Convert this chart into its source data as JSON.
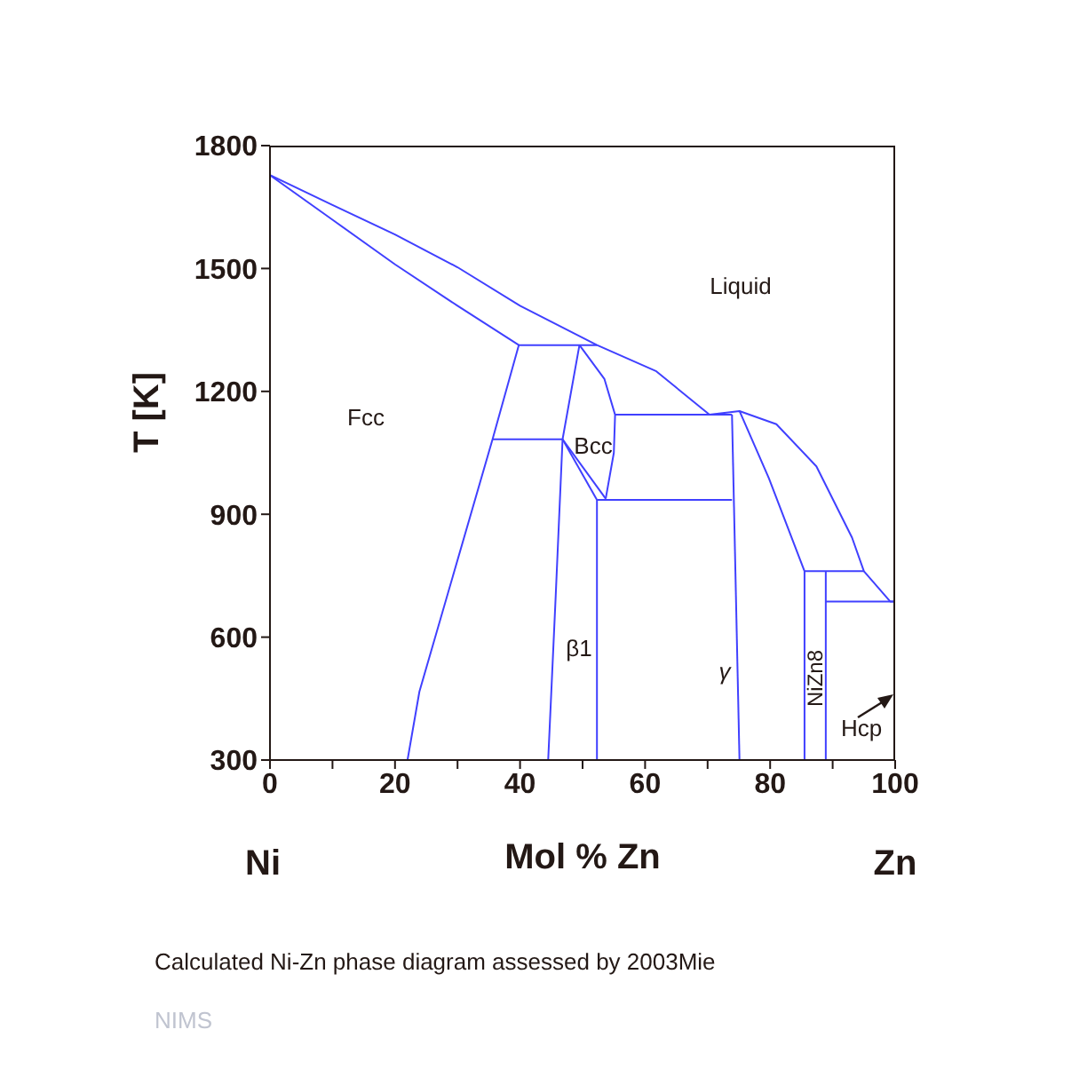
{
  "chart_data": {
    "type": "line",
    "xlabel": "Mol % Zn",
    "ylabel": "T [K]",
    "xlim": [
      0,
      100
    ],
    "ylim": [
      300,
      1800
    ],
    "xticks": [
      0,
      {
        "value": 10,
        "label": null
      },
      20,
      {
        "value": 30,
        "label": null
      },
      40,
      {
        "value": 50,
        "label": null
      },
      60,
      {
        "value": 70,
        "label": null
      },
      80,
      {
        "value": 90,
        "label": null
      },
      100
    ],
    "yticks": [
      300,
      600,
      900,
      1200,
      1500,
      1800
    ],
    "grid": false,
    "marker": "none",
    "line_style": "solid",
    "series": [
      {
        "color": "#4040ff",
        "x": [
          0,
          10,
          20,
          30,
          40,
          52.3,
          61.8,
          70.3
        ],
        "values": [
          1728,
          1655,
          1583,
          1503,
          1409,
          1313,
          1249,
          1143
        ]
      },
      {
        "color": "#4040ff",
        "x": [
          0,
          10,
          20,
          30,
          39.8,
          35.6,
          23.9,
          22
        ],
        "values": [
          1728,
          1619,
          1510,
          1409,
          1313,
          1083,
          467,
          300
        ]
      },
      {
        "color": "#4040ff",
        "x": [
          39.8,
          52.3
        ],
        "values": [
          1313,
          1313
        ]
      },
      {
        "color": "#4040ff",
        "x": [
          35.6,
          46.8
        ],
        "values": [
          1083,
          1083
        ]
      },
      {
        "color": "#4040ff",
        "x": [
          49.5,
          46.8,
          45.7,
          44.5
        ],
        "values": [
          1313,
          1083,
          700,
          300
        ]
      },
      {
        "color": "#4040ff",
        "x": [
          49.5,
          53.5,
          55.2,
          55,
          53.7
        ],
        "values": [
          1313,
          1230,
          1143,
          1050,
          938
        ]
      },
      {
        "color": "#4040ff",
        "x": [
          55.2,
          73.9
        ],
        "values": [
          1143,
          1143
        ]
      },
      {
        "color": "#4040ff",
        "x": [
          46.8,
          52.3
        ],
        "values": [
          1083,
          935
        ]
      },
      {
        "color": "#4040ff",
        "x": [
          46.8,
          53.7
        ],
        "values": [
          1083,
          938
        ]
      },
      {
        "color": "#4040ff",
        "x": [
          52.3,
          73.9
        ],
        "values": [
          935,
          935
        ]
      },
      {
        "color": "#4040ff",
        "x": [
          52.3,
          52.3
        ],
        "values": [
          935,
          300
        ]
      },
      {
        "color": "#4040ff",
        "x": [
          73.9,
          75.1
        ],
        "values": [
          1143,
          300
        ]
      },
      {
        "color": "#4040ff",
        "x": [
          70.3,
          75.1,
          81,
          87.4,
          93.1,
          95,
          99.2,
          100
        ],
        "values": [
          1143,
          1152,
          1120,
          1017,
          843,
          761,
          687,
          687
        ]
      },
      {
        "color": "#4040ff",
        "x": [
          75.1,
          79.8,
          85.5,
          85.5
        ],
        "values": [
          1152,
          988,
          761,
          300
        ]
      },
      {
        "color": "#4040ff",
        "x": [
          85.5,
          95
        ],
        "values": [
          761,
          761
        ]
      },
      {
        "color": "#4040ff",
        "x": [
          88.9,
          88.9
        ],
        "values": [
          761,
          300
        ]
      },
      {
        "color": "#4040ff",
        "x": [
          88.9,
          100
        ],
        "values": [
          687,
          687
        ]
      }
    ],
    "annotations": [
      "Liquid",
      "Fcc",
      "Bcc",
      "β1",
      "γ",
      "NiZn8",
      "Hcp",
      "Ni",
      "Zn",
      "Calculated Ni-Zn phase diagram assessed by 2003Mie",
      "NIMS"
    ]
  }
}
